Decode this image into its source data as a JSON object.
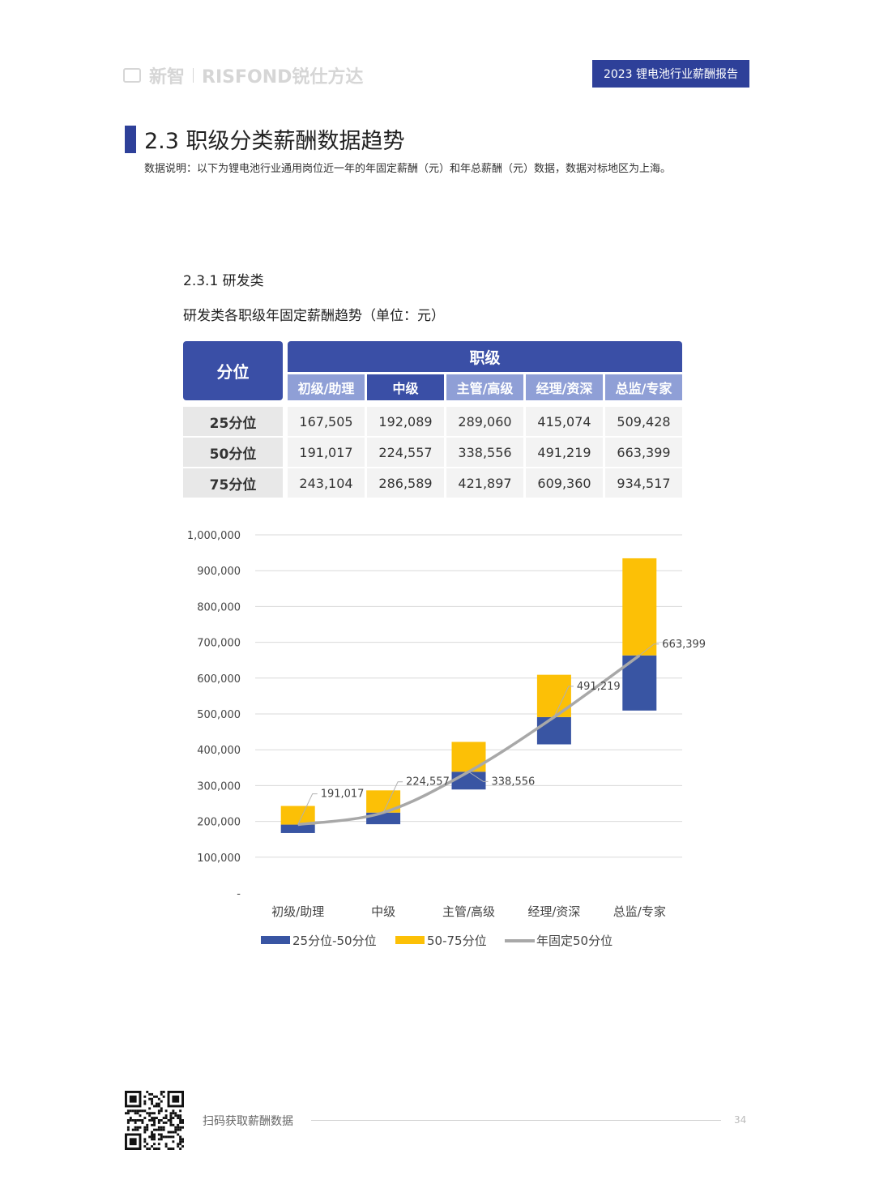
{
  "header": {
    "brand_primary": "新智",
    "brand_secondary": "RISFOND锐仕方达",
    "report_title": "2023 锂电池行业薪酬报告"
  },
  "section": {
    "title": "2.3 职级分类薪酬数据趋势",
    "note": "数据说明：以下为锂电池行业通用岗位近一年的年固定薪酬（元）和年总薪酬（元）数据，数据对标地区为上海。"
  },
  "subsection": {
    "title": "2.3.1 研发类",
    "chart_caption": "研发类各职级年固定薪酬趋势（单位：元）"
  },
  "table": {
    "corner_header": "分位",
    "group_header": "职级",
    "columns": [
      "初级/助理",
      "中级",
      "主管/高级",
      "经理/资深",
      "总监/专家"
    ],
    "rows": [
      {
        "label": "25分位",
        "values": [
          "167,505",
          "192,089",
          "289,060",
          "415,074",
          "509,428"
        ]
      },
      {
        "label": "50分位",
        "values": [
          "191,017",
          "224,557",
          "338,556",
          "491,219",
          "663,399"
        ]
      },
      {
        "label": "75分位",
        "values": [
          "243,104",
          "286,589",
          "421,897",
          "609,360",
          "934,517"
        ]
      }
    ]
  },
  "colors": {
    "navy": "#2e4099",
    "header_blue": "#3a4fa6",
    "light_header": "#8f9fd6",
    "bar_blue": "#3955a3",
    "bar_yellow": "#fcc006",
    "line_gray": "#a8a8a8"
  },
  "chart_data": {
    "type": "bar",
    "categories": [
      "初级/助理",
      "中级",
      "主管/高级",
      "经理/资深",
      "总监/专家"
    ],
    "p25": [
      167505,
      192089,
      289060,
      415074,
      509428
    ],
    "p50": [
      191017,
      224557,
      338556,
      491219,
      663399
    ],
    "p75": [
      243104,
      286589,
      421897,
      609360,
      934517
    ],
    "series": [
      {
        "name": "25分位-50分位",
        "type": "floating-bar",
        "color": "#3955a3"
      },
      {
        "name": "50-75分位",
        "type": "floating-bar",
        "color": "#fcc006"
      },
      {
        "name": "年固定50分位",
        "type": "line",
        "color": "#a8a8a8"
      }
    ],
    "data_labels": [
      "191,017",
      "224,557",
      "338,556",
      "491,219",
      "663,399"
    ],
    "ylim": [
      0,
      1000000
    ],
    "yticks": [
      0,
      100000,
      200000,
      300000,
      400000,
      500000,
      600000,
      700000,
      800000,
      900000,
      1000000
    ],
    "ytick_labels": [
      "-",
      "100,000",
      "200,000",
      "300,000",
      "400,000",
      "500,000",
      "600,000",
      "700,000",
      "800,000",
      "900,000",
      "1,000,000"
    ],
    "grid": true,
    "legend": "bottom"
  },
  "footer": {
    "text": "扫码获取薪酬数据",
    "page": "34"
  }
}
